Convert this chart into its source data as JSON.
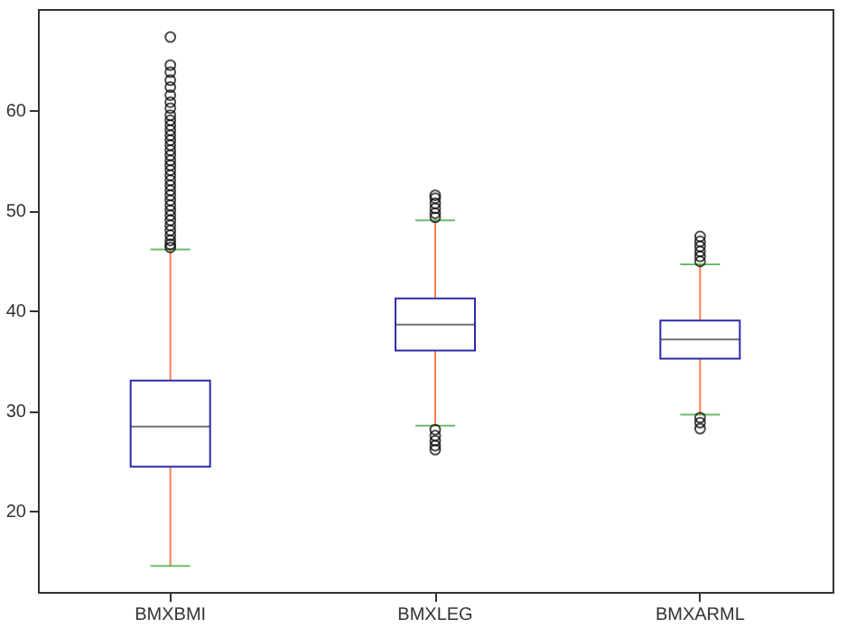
{
  "chart_data": {
    "type": "box",
    "categories": [
      "BMXBMI",
      "BMXLEG",
      "BMXARML"
    ],
    "ylim": [
      11.9,
      70.1
    ],
    "yticks": [
      20,
      30,
      40,
      50,
      60
    ],
    "grid": false,
    "series": [
      {
        "color": "#2b2bab",
        "boxes": [
          {
            "low": 14.5,
            "q1": 24.4,
            "median": 28.4,
            "q3": 33.0,
            "high": 46.1,
            "outliers": [
              46.3,
              46.6,
              47,
              47.5,
              48,
              48.5,
              49,
              49.5,
              50,
              50.5,
              51,
              51.5,
              52,
              52.5,
              53,
              53.5,
              54,
              54.5,
              55,
              55.5,
              56,
              56.5,
              57,
              57.5,
              58,
              58.5,
              59,
              59.5,
              60.2,
              60.8,
              61.5,
              62.3,
              63,
              63.8,
              64.5,
              67.3
            ]
          },
          {
            "low": 28.5,
            "q1": 36.0,
            "median": 38.6,
            "q3": 41.2,
            "high": 49.0,
            "outliers": [
              26.1,
              26.5,
              27,
              27.5,
              28.1,
              49.3,
              49.7,
              50.2,
              50.7,
              51.2,
              51.5
            ]
          },
          {
            "low": 29.6,
            "q1": 35.2,
            "median": 37.1,
            "q3": 39.0,
            "high": 44.6,
            "outliers": [
              28.2,
              28.8,
              29.3,
              44.9,
              45.4,
              45.9,
              46.4,
              46.9,
              47.4
            ]
          }
        ]
      }
    ]
  }
}
